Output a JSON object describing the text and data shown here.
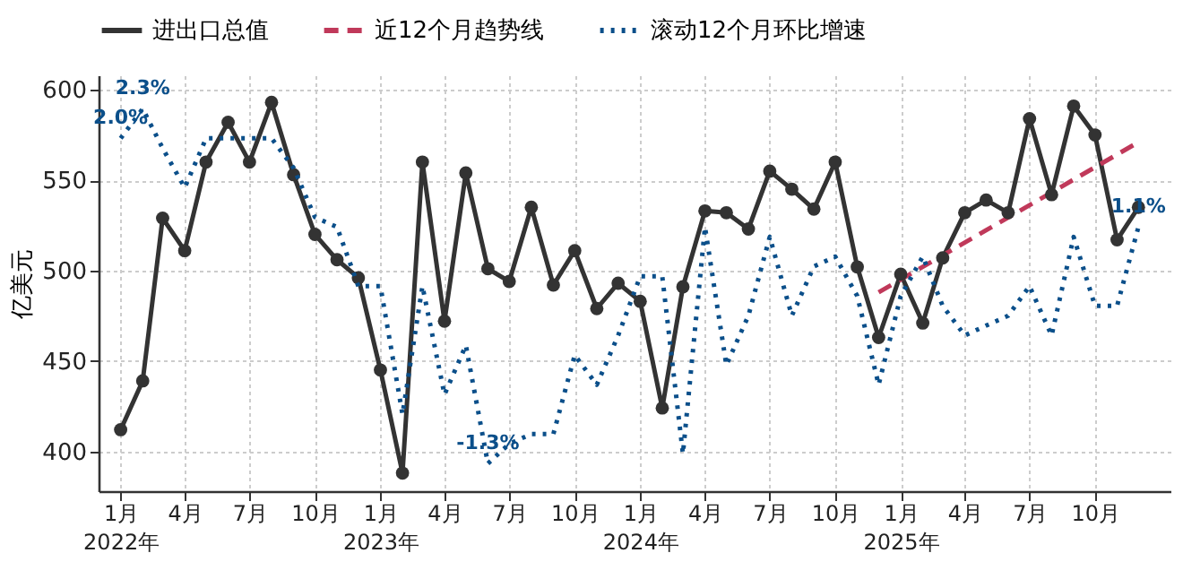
{
  "chart_data": {
    "type": "line",
    "ylabel": "亿美元",
    "x": [
      "2022-01",
      "2022-02",
      "2022-03",
      "2022-04",
      "2022-05",
      "2022-06",
      "2022-07",
      "2022-08",
      "2022-09",
      "2022-10",
      "2022-11",
      "2022-12",
      "2023-01",
      "2023-02",
      "2023-03",
      "2023-04",
      "2023-05",
      "2023-06",
      "2023-07",
      "2023-08",
      "2023-09",
      "2023-10",
      "2023-11",
      "2023-12",
      "2024-01",
      "2024-02",
      "2024-03",
      "2024-04",
      "2024-05",
      "2024-06",
      "2024-07",
      "2024-08",
      "2024-09",
      "2024-10",
      "2024-11",
      "2024-12",
      "2025-01",
      "2025-02",
      "2025-03",
      "2025-04",
      "2025-05",
      "2025-06",
      "2025-07",
      "2025-08",
      "2025-09",
      "2025-10",
      "2025-11",
      "2025-12"
    ],
    "series": [
      {
        "name": "进出口总值",
        "color": "#333333",
        "marker": "circle",
        "line_style": "solid",
        "values": [
          412,
          439,
          529,
          511,
          560,
          582,
          560,
          593,
          553,
          520,
          506,
          496,
          445,
          388,
          560,
          472,
          554,
          501,
          494,
          535,
          492,
          511,
          479,
          493,
          483,
          424,
          491,
          533,
          532,
          523,
          555,
          545,
          534,
          560,
          502,
          463,
          498,
          471,
          507,
          532,
          539,
          532,
          584,
          542,
          591,
          575,
          517,
          535
        ]
      },
      {
        "name": "近12个月趋势线",
        "type": "line",
        "color": "#c0395a",
        "line_style": "dashed",
        "x": [
          "2024-12",
          "2025-12"
        ],
        "values": [
          488,
          571
        ]
      },
      {
        "name": "滚动12个月环比增速",
        "color": "#0b4f8a",
        "line_style": "dotted",
        "axis": "y2",
        "values": [
          2.0,
          2.3,
          1.9,
          1.5,
          2.0,
          2.0,
          2.0,
          2.0,
          1.7,
          1.2,
          1.1,
          0.5,
          0.5,
          -0.8,
          0.5,
          -0.6,
          -0.1,
          -1.3,
          -1.1,
          -1.0,
          -1.0,
          -0.2,
          -0.5,
          0.0,
          0.6,
          0.6,
          -1.2,
          1.1,
          -0.3,
          0.2,
          1.0,
          0.2,
          0.7,
          0.8,
          0.4,
          -0.5,
          0.4,
          0.8,
          0.3,
          0.0,
          0.1,
          0.2,
          0.5,
          0.0,
          1.0,
          0.3,
          0.3,
          1.1
        ],
        "value_labels": [
          "2.0%",
          "2.3%",
          null,
          null,
          null,
          null,
          null,
          null,
          null,
          null,
          null,
          null,
          null,
          null,
          null,
          null,
          null,
          "-1.3%",
          null,
          null,
          null,
          null,
          null,
          null,
          null,
          null,
          null,
          null,
          null,
          null,
          null,
          null,
          null,
          null,
          null,
          null,
          null,
          null,
          null,
          null,
          null,
          null,
          null,
          null,
          null,
          null,
          null,
          "1.1%"
        ]
      }
    ],
    "xlim": [
      "2021-12-01",
      "2026-01-15"
    ],
    "xticks": [
      {
        "value": "2022-01",
        "label": "1月\n2022年"
      },
      {
        "value": "2022-04",
        "label": "4月"
      },
      {
        "value": "2022-07",
        "label": "7月"
      },
      {
        "value": "2022-10",
        "label": "10月"
      },
      {
        "value": "2023-01",
        "label": "1月\n2023年"
      },
      {
        "value": "2023-04",
        "label": "4月"
      },
      {
        "value": "2023-07",
        "label": "7月"
      },
      {
        "value": "2023-10",
        "label": "10月"
      },
      {
        "value": "2024-01",
        "label": "1月\n2024年"
      },
      {
        "value": "2024-04",
        "label": "4月"
      },
      {
        "value": "2024-07",
        "label": "7月"
      },
      {
        "value": "2024-10",
        "label": "10月"
      },
      {
        "value": "2025-01",
        "label": "1月\n2025年"
      },
      {
        "value": "2025-04",
        "label": "4月"
      },
      {
        "value": "2025-07",
        "label": "7月"
      },
      {
        "value": "2025-10",
        "label": "10月"
      }
    ],
    "ylim": [
      378,
      608
    ],
    "yticks": [
      400,
      450,
      500,
      550,
      600
    ],
    "y2lim": [
      -1.58,
      2.64
    ],
    "grid": true,
    "legend": "top"
  }
}
